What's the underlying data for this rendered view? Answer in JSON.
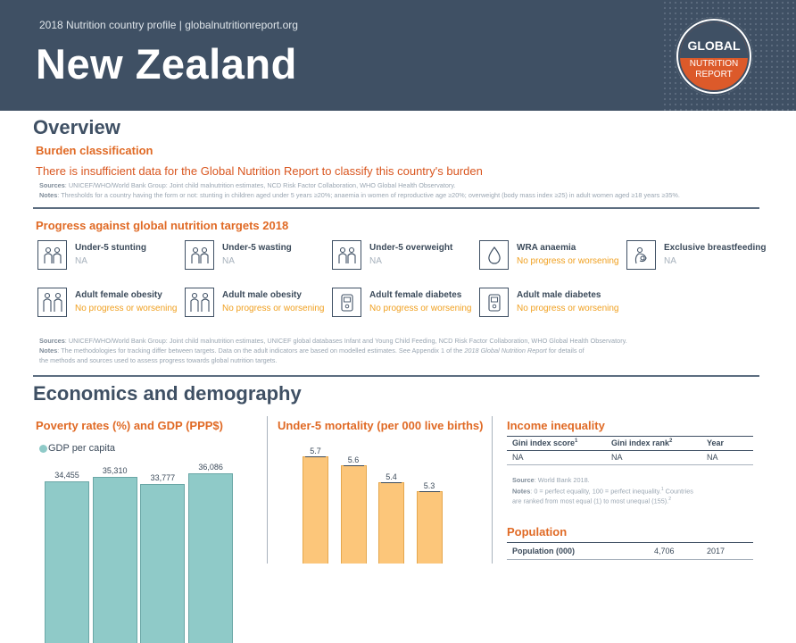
{
  "header": {
    "subtitle": "2018 Nutrition country profile  |  globalnutritionreport.org",
    "country": "New Zealand",
    "logo": {
      "line1": "GLOBAL",
      "line2": "NUTRITION",
      "line3": "REPORT"
    }
  },
  "overview": {
    "title": "Overview",
    "burden_heading": "Burden classification",
    "burden_text": "There is insufficient data for the Global Nutrition Report to classify this country's burden",
    "sources_label": "Sources",
    "sources_text": ": UNICEF/WHO/World Bank Group: Joint child malnutrition estimates, NCD Risk Factor Collaboration, WHO Global Health Observatory.",
    "notes_label": "Notes",
    "notes_text": ": Thresholds for a country having the form or not: stunting in children aged under 5 years ≥20%; anaemia in women of reproductive age ≥20%; overweight (body mass index ≥25) in adult women aged ≥18 years ≥35%."
  },
  "progress": {
    "heading": "Progress against global nutrition targets 2018",
    "targets": [
      {
        "name": "Under-5 stunting",
        "status": "NA",
        "icon": "children-icon"
      },
      {
        "name": "Under-5 wasting",
        "status": "NA",
        "icon": "children-icon"
      },
      {
        "name": "Under-5 overweight",
        "status": "NA",
        "icon": "children-icon"
      },
      {
        "name": "WRA anaemia",
        "status": "No progress or worsening",
        "icon": "blood-drop-icon"
      },
      {
        "name": "Exclusive breastfeeding",
        "status": "NA",
        "icon": "breastfeeding-icon"
      },
      {
        "name": "Adult female obesity",
        "status": "No progress or worsening",
        "icon": "adults-icon"
      },
      {
        "name": "Adult male obesity",
        "status": "No progress or worsening",
        "icon": "adults-icon"
      },
      {
        "name": "Adult female diabetes",
        "status": "No progress or worsening",
        "icon": "glucose-meter-icon"
      },
      {
        "name": "Adult male diabetes",
        "status": "No progress or worsening",
        "icon": "glucose-meter-icon"
      }
    ],
    "sources_label": "Sources",
    "sources_text": ": UNICEF/WHO/World Bank Group: Joint child malnutrition estimates, UNICEF global databases Infant and Young Child Feeding, NCD Risk Factor Collaboration, WHO Global Health Observatory.",
    "notes_label": "Notes",
    "notes_text_1": ": The methodologies for tracking differ between targets. Data on the adult indicators are based on modelled estimates. See Appendix 1 of the ",
    "notes_italic": "2018 Global Nutrition Report",
    "notes_text_2": " for details of",
    "notes_text_3": "the methods and sources used to assess progress towards global nutrition targets."
  },
  "economics": {
    "title": "Economics and demography",
    "poverty_heading": "Poverty rates (%) and GDP (PPP$)",
    "gdp_legend": "GDP per capita",
    "mortality_heading": "Under-5 mortality (per 000 live births)",
    "income_heading": "Income inequality",
    "income_table": {
      "headers": [
        "Gini index score",
        "Gini index rank",
        "Year"
      ],
      "header_sups": [
        "1",
        "2",
        ""
      ],
      "row": [
        "NA",
        "NA",
        "NA"
      ]
    },
    "income_source_label": "Source",
    "income_source_text": ": World Bank 2018.",
    "income_notes_label": "Notes",
    "income_notes_text": ": 0 = perfect equality, 100 = perfect inequality.",
    "income_notes_sup1": "1",
    "income_notes_text2": " Countries",
    "income_notes_text3": "are ranked from most equal (1) to most unequal (155).",
    "income_notes_sup2": "2",
    "population_heading": "Population",
    "population_row": {
      "label": "Population (000)",
      "value": "4,706",
      "year": "2017"
    }
  },
  "chart_data": [
    {
      "type": "bar",
      "title": "Poverty rates (%) and GDP (PPP$)",
      "series": [
        {
          "name": "GDP per capita",
          "values": [
            34455,
            35310,
            33777,
            36086
          ]
        }
      ],
      "labels": [
        "34,455",
        "35,310",
        "33,777",
        "36,086"
      ],
      "color": "#8fcac8"
    },
    {
      "type": "bar",
      "title": "Under-5 mortality (per 000 live births)",
      "values": [
        5.7,
        5.6,
        5.4,
        5.3
      ],
      "labels": [
        "5.7",
        "5.6",
        "5.4",
        "5.3"
      ],
      "color": "#fcc67a"
    }
  ]
}
